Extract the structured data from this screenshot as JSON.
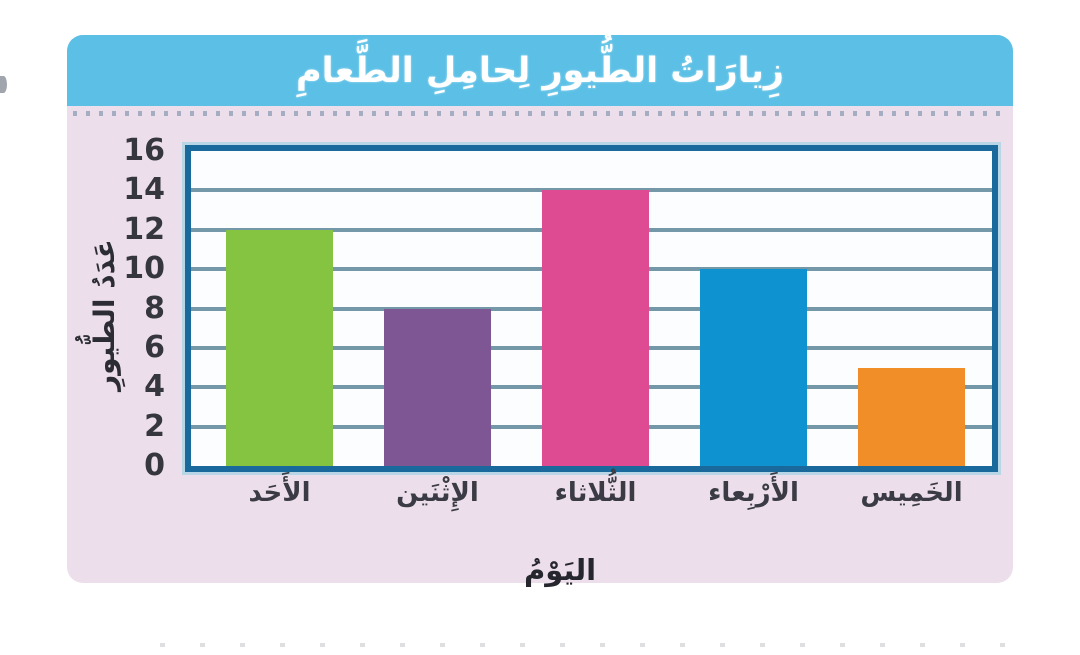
{
  "chart_data": {
    "type": "bar",
    "title": "زِيارَاتُ الطُّيورِ لِحامِلِ الطَّعامِ",
    "xlabel": "اليَوْمُ",
    "ylabel": "عَدَدُ الطُّيورِ",
    "categories": [
      "الأَحَد",
      "الإِثْنَين",
      "الثُّلاثاء",
      "الأَرْبِعاء",
      "الخَمِيس"
    ],
    "values": [
      12,
      8,
      14,
      10,
      5
    ],
    "bar_colors": [
      "#84c440",
      "#7e5694",
      "#df4b92",
      "#0f93d0",
      "#f28e28"
    ],
    "ylim": [
      0,
      16
    ],
    "yticks": [
      0,
      2,
      4,
      6,
      8,
      10,
      12,
      14,
      16
    ],
    "grid": "horizontal",
    "legend": "none"
  },
  "colors": {
    "title_bar": "#5cc0e6",
    "title_text": "#ffffff",
    "card_body": "#ecdfeb",
    "plot_frame": "#1a699c",
    "gridline": "#7498a8",
    "tick_text": "#35363e"
  }
}
